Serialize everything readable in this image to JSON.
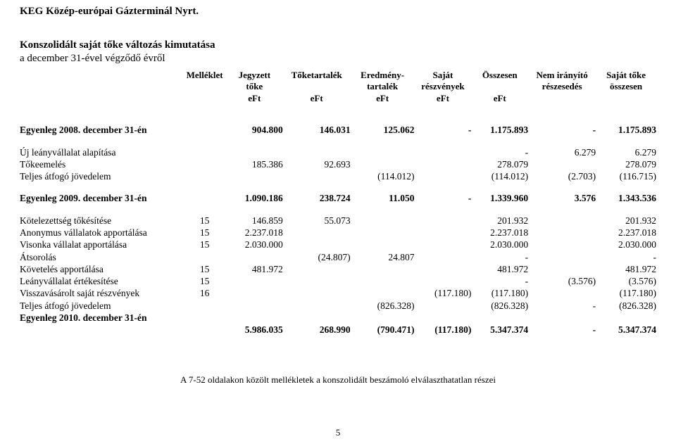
{
  "company": "KEG Közép-európai Gázterminál Nyrt.",
  "title": "Konszolidált saját tőke változás kimutatása",
  "subtitle": "a december 31-ével végződő évről",
  "headers": {
    "mell": "Melléklet",
    "c1a": "Jegyzett",
    "c1b": "tőke",
    "c1c": "eFt",
    "c2a": "Tőketartalék",
    "c2c": "eFt",
    "c3a": "Eredmény-",
    "c3b": "tartalék",
    "c3c": "eFt",
    "c4a": "Saját",
    "c4b": "részvények",
    "c4c": "eFt",
    "c5a": "Összesen",
    "c5c": "eFt",
    "c6a": "Nem irányító",
    "c6b": "részesedés",
    "c7a": "Saját tőke",
    "c7b": "összesen"
  },
  "rows": {
    "bal2008": {
      "label": "Egyenleg 2008. december 31-én",
      "a": "904.800",
      "b": "146.031",
      "c": "125.062",
      "d": "-",
      "e": "1.175.893",
      "f": "-",
      "g": "1.175.893"
    },
    "ujleany": {
      "label": "Új leányvállalat alapítása",
      "e": "-",
      "f": "6.279",
      "g": "6.279"
    },
    "tokeemel": {
      "label": "Tőkeemelés",
      "a": "185.386",
      "b": "92.693",
      "e": "278.079",
      "g": "278.079"
    },
    "tatjov1": {
      "label": "Teljes átfogó jövedelem",
      "c": "(114.012)",
      "e": "(114.012)",
      "f": "(2.703)",
      "g": "(116.715)"
    },
    "bal2009": {
      "label": "Egyenleg 2009. december 31-én",
      "a": "1.090.186",
      "b": "238.724",
      "c": "11.050",
      "d": "-",
      "e": "1.339.960",
      "f": "3.576",
      "g": "1.343.536"
    },
    "kotelez": {
      "label": "Kötelezettség tőkésítése",
      "m": "15",
      "a": "146.859",
      "b": "55.073",
      "e": "201.932",
      "g": "201.932"
    },
    "anonymus": {
      "label": "Anonymus vállalatok apportálása",
      "m": "15",
      "a": "2.237.018",
      "e": "2.237.018",
      "g": "2.237.018"
    },
    "visonka": {
      "label": "Visonka vállalat apportálása",
      "m": "15",
      "a": "2.030.000",
      "e": "2.030.000",
      "g": "2.030.000"
    },
    "atsorol": {
      "label": "Átsorolás",
      "b": "(24.807)",
      "c": "24.807",
      "e": "-",
      "g": "-"
    },
    "kovetel": {
      "label": "Követelés apportálása",
      "m": "15",
      "a": "481.972",
      "e": "481.972",
      "g": "481.972"
    },
    "leanyert": {
      "label": "Leányvállalat értékesítése",
      "m": "15",
      "e": "-",
      "f": "(3.576)",
      "g": "(3.576)"
    },
    "visszav": {
      "label": "Visszavásárolt saját részvények",
      "m": "16",
      "d": "(117.180)",
      "e": "(117.180)",
      "g": "(117.180)"
    },
    "tatjov2": {
      "label": "Teljes átfogó jövedelem",
      "c": "(826.328)",
      "e": "(826.328)",
      "f": "-",
      "g": "(826.328)"
    },
    "bal2010lab": {
      "label": "Egyenleg 2010. december 31-én"
    },
    "bal2010": {
      "a": "5.986.035",
      "b": "268.990",
      "c": "(790.471)",
      "d": "(117.180)",
      "e": "5.347.374",
      "f": "-",
      "g": "5.347.374"
    }
  },
  "footnote": "A 7-52 oldalakon közölt mellékletek a konszolidált beszámoló elválaszthatatlan részei",
  "pagenum": "5"
}
